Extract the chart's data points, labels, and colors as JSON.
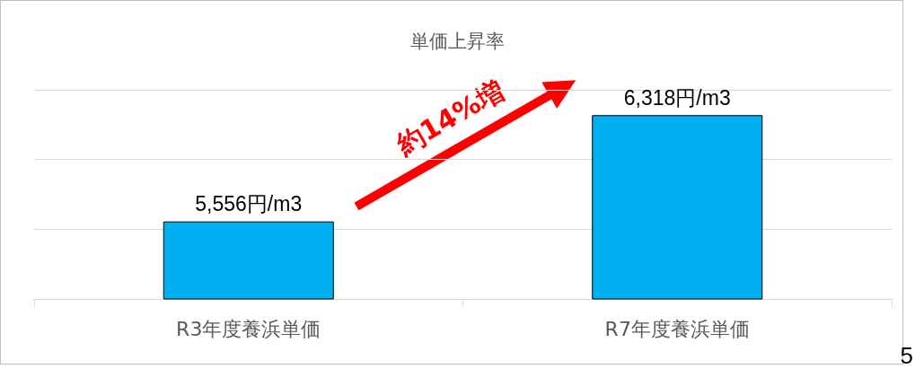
{
  "chart_data": {
    "type": "bar",
    "title": "単価上昇率",
    "categories": [
      "R3年度養浜単価",
      "R7年度養浜単価"
    ],
    "values": [
      5556,
      6318
    ],
    "value_labels": [
      "5,556円/m3",
      "6,318円/m3"
    ],
    "color": "#00b0f0",
    "ylim": [
      5000,
      6500
    ],
    "yticks": [
      {
        "value": 5000,
        "label": null
      },
      {
        "value": 5500,
        "label": null
      },
      {
        "value": 6000,
        "label": null
      },
      {
        "value": 6500,
        "label": null
      }
    ],
    "tick_labels": "x",
    "grid": "y",
    "annotations": [
      "約14%増",
      "5"
    ]
  }
}
